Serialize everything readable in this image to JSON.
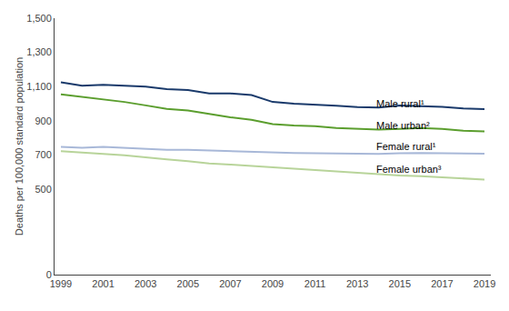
{
  "chart_data": {
    "type": "line",
    "x": [
      1999,
      2000,
      2001,
      2002,
      2003,
      2004,
      2005,
      2006,
      2007,
      2008,
      2009,
      2010,
      2011,
      2012,
      2013,
      2014,
      2015,
      2016,
      2017,
      2018,
      2019
    ],
    "series": [
      {
        "name": "Male rural¹",
        "color": "#1a3a6b",
        "values": [
          1125,
          1105,
          1110,
          1105,
          1100,
          1085,
          1080,
          1060,
          1060,
          1050,
          1010,
          1000,
          995,
          988,
          980,
          978,
          990,
          988,
          982,
          972,
          968
        ]
      },
      {
        "name": "Male urban²",
        "color": "#5b9e2e",
        "values": [
          1055,
          1040,
          1025,
          1010,
          990,
          970,
          960,
          940,
          920,
          905,
          880,
          872,
          868,
          858,
          852,
          848,
          852,
          858,
          852,
          842,
          838
        ]
      },
      {
        "name": "Female rural¹",
        "color": "#a8b8d8",
        "values": [
          748,
          742,
          748,
          742,
          736,
          730,
          730,
          726,
          720,
          718,
          714,
          712,
          710,
          708,
          706,
          706,
          710,
          712,
          710,
          710,
          708
        ]
      },
      {
        "name": "Female urban³",
        "color": "#b8d49a",
        "values": [
          722,
          712,
          706,
          698,
          685,
          674,
          664,
          650,
          644,
          636,
          626,
          618,
          612,
          606,
          598,
          588,
          580,
          576,
          570,
          563,
          556
        ]
      }
    ],
    "annotations": [
      {
        "text": "Male rural¹",
        "x": 2013.8,
        "y": 1000
      },
      {
        "text": "Male urban²",
        "x": 2013.8,
        "y": 870
      },
      {
        "text": "Female rural¹",
        "x": 2013.8,
        "y": 748
      },
      {
        "text": "Female urban³",
        "x": 2013.8,
        "y": 618
      }
    ],
    "y_label": "Deaths per 100,000 standard population",
    "xlim": [
      1998.7,
      2019.3
    ],
    "xticks": [
      1999,
      2001,
      2003,
      2005,
      2007,
      2009,
      2011,
      2013,
      2015,
      2017,
      2019
    ],
    "ylim": [
      0,
      1500
    ],
    "yticks": [
      0,
      500,
      700,
      900,
      {
        "value": 1100,
        "label": "1,100"
      },
      {
        "value": 1300,
        "label": "1,300"
      },
      {
        "value": 1500,
        "label": "1,500"
      }
    ],
    "grid": false
  }
}
